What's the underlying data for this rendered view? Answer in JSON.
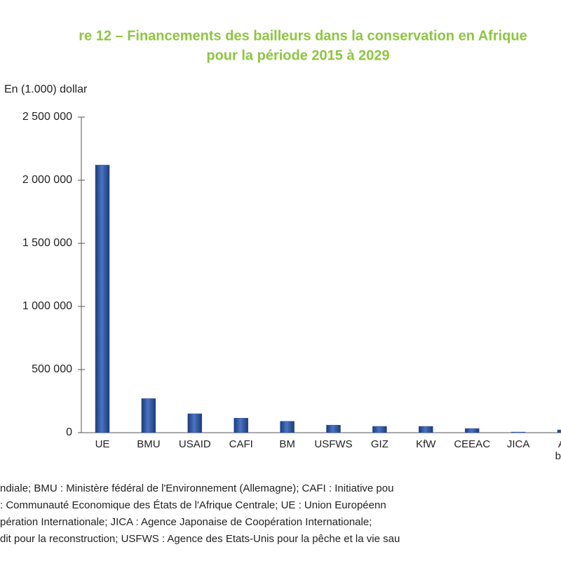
{
  "chart_data": {
    "type": "bar",
    "title": "re 12 – Financements des bailleurs dans la conservation en Afrique",
    "subtitle": "pour la période 2015 à 2029",
    "y_label": "En (1.000) dollar",
    "categories": [
      "UE",
      "BMU",
      "USAID",
      "CAFI",
      "BM",
      "USFWS",
      "GIZ",
      "KfW",
      "CEEAC",
      "JICA",
      "Au baill"
    ],
    "values": [
      2120000,
      270000,
      150000,
      115000,
      90000,
      60000,
      50000,
      50000,
      33000,
      5000,
      22000
    ],
    "color": "#2d54a3",
    "ylim": [
      0,
      2500000
    ],
    "yticks": [
      0,
      {
        "value": 500000,
        "label": "500 000"
      },
      {
        "value": 1000000,
        "label": "1 000 000"
      },
      {
        "value": 1500000,
        "label": "1 500 000"
      },
      {
        "value": 2000000,
        "label": "2 000 000"
      },
      {
        "value": 2500000,
        "label": "2 500 000"
      }
    ],
    "footnote": [
      "ndiale; BMU : Ministère fédéral de l'Environnement (Allemagne); CAFI : Initiative pou",
      ": Communauté Economique des États de l'Afrique Centrale; UE : Union Européenn",
      "pération Internationale; JICA : Agence Japonaise de Coopération Internationale;",
      "dit pour la reconstruction; USFWS : Agence des Etats-Unis pour la pêche et la vie sau"
    ]
  }
}
